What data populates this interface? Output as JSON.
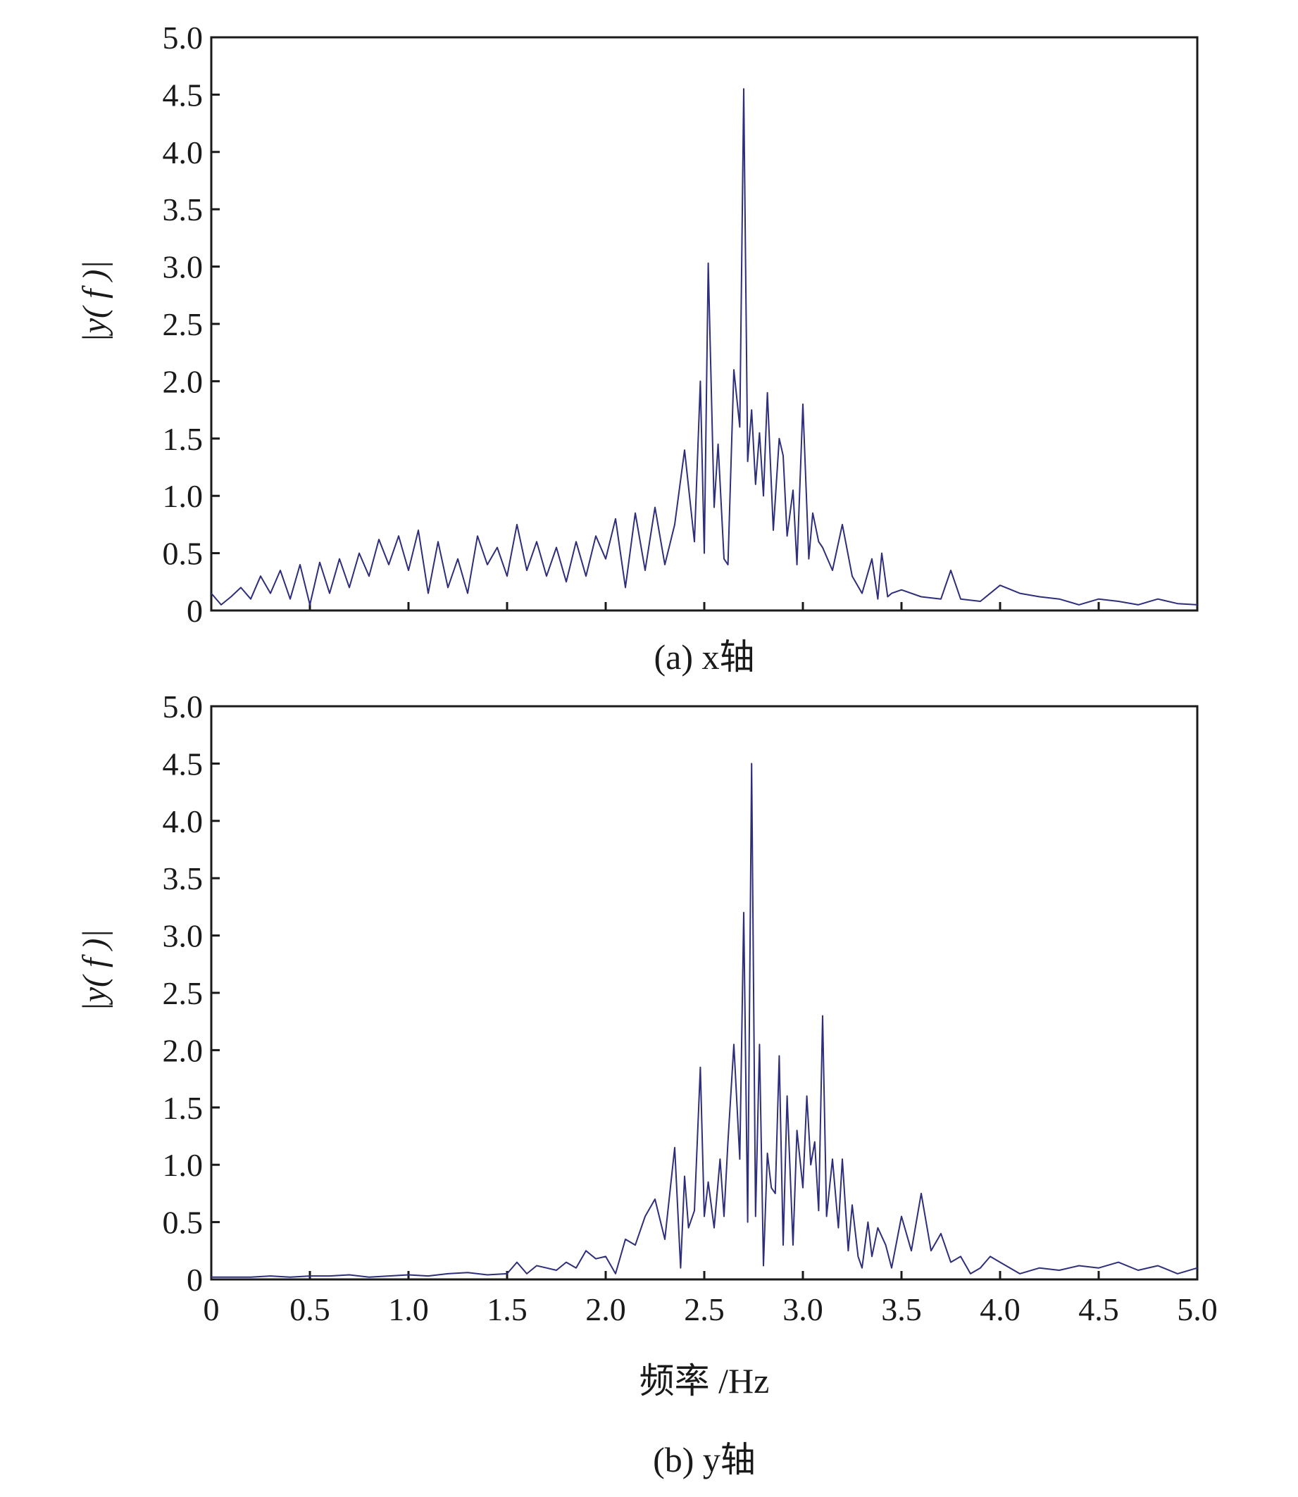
{
  "colors": {
    "line": "#2e2e7a",
    "axis": "#1a1a1a"
  },
  "chart_data": [
    {
      "type": "line",
      "caption": "(a) x轴",
      "ylabel": "|y( f )|",
      "xlabel": "",
      "xlim": [
        0,
        5.0
      ],
      "ylim": [
        0,
        5.0
      ],
      "xticks": [
        0,
        0.5,
        1.0,
        1.5,
        2.0,
        2.5,
        3.0,
        3.5,
        4.0,
        4.5,
        5.0
      ],
      "xtick_labels": [],
      "yticks": [
        0,
        0.5,
        1.0,
        1.5,
        2.0,
        2.5,
        3.0,
        3.5,
        4.0,
        4.5,
        5.0
      ],
      "ytick_labels": [
        "0",
        "0.5",
        "1.0",
        "1.5",
        "2.0",
        "2.5",
        "3.0",
        "3.5",
        "4.0",
        "4.5",
        "5.0"
      ],
      "grid": false,
      "series": [
        {
          "x": [
            0.0,
            0.05,
            0.1,
            0.15,
            0.2,
            0.25,
            0.3,
            0.35,
            0.4,
            0.45,
            0.5,
            0.55,
            0.6,
            0.65,
            0.7,
            0.75,
            0.8,
            0.85,
            0.9,
            0.95,
            1.0,
            1.05,
            1.1,
            1.15,
            1.2,
            1.25,
            1.3,
            1.35,
            1.4,
            1.45,
            1.5,
            1.55,
            1.6,
            1.65,
            1.7,
            1.75,
            1.8,
            1.85,
            1.9,
            1.95,
            2.0,
            2.05,
            2.1,
            2.15,
            2.2,
            2.25,
            2.3,
            2.35,
            2.4,
            2.45,
            2.48,
            2.5,
            2.52,
            2.55,
            2.57,
            2.6,
            2.62,
            2.65,
            2.68,
            2.7,
            2.72,
            2.74,
            2.76,
            2.78,
            2.8,
            2.82,
            2.85,
            2.88,
            2.9,
            2.92,
            2.95,
            2.97,
            3.0,
            3.03,
            3.05,
            3.08,
            3.1,
            3.15,
            3.2,
            3.25,
            3.3,
            3.35,
            3.38,
            3.4,
            3.43,
            3.45,
            3.5,
            3.6,
            3.7,
            3.75,
            3.8,
            3.9,
            4.0,
            4.1,
            4.2,
            4.3,
            4.4,
            4.5,
            4.6,
            4.7,
            4.8,
            4.9,
            5.0
          ],
          "y": [
            0.15,
            0.05,
            0.12,
            0.2,
            0.1,
            0.3,
            0.15,
            0.35,
            0.1,
            0.4,
            0.05,
            0.42,
            0.15,
            0.45,
            0.2,
            0.5,
            0.3,
            0.62,
            0.4,
            0.65,
            0.35,
            0.7,
            0.15,
            0.6,
            0.2,
            0.45,
            0.15,
            0.65,
            0.4,
            0.55,
            0.3,
            0.75,
            0.35,
            0.6,
            0.3,
            0.55,
            0.25,
            0.6,
            0.3,
            0.65,
            0.45,
            0.8,
            0.2,
            0.85,
            0.35,
            0.9,
            0.4,
            0.75,
            1.4,
            0.6,
            2.0,
            0.5,
            3.03,
            0.9,
            1.45,
            0.45,
            0.4,
            2.1,
            1.6,
            4.55,
            1.3,
            1.75,
            1.1,
            1.55,
            1.0,
            1.9,
            0.7,
            1.5,
            1.35,
            0.65,
            1.05,
            0.4,
            1.8,
            0.45,
            0.85,
            0.6,
            0.55,
            0.35,
            0.75,
            0.3,
            0.15,
            0.45,
            0.1,
            0.5,
            0.12,
            0.15,
            0.18,
            0.12,
            0.1,
            0.35,
            0.1,
            0.08,
            0.22,
            0.15,
            0.12,
            0.1,
            0.05,
            0.1,
            0.08,
            0.05,
            0.1,
            0.06,
            0.05
          ]
        }
      ]
    },
    {
      "type": "line",
      "caption": "(b) y轴",
      "ylabel": "|y( f )|",
      "xlabel": "频率 /Hz",
      "xlim": [
        0,
        5.0
      ],
      "ylim": [
        0,
        5.0
      ],
      "xticks": [
        0,
        0.5,
        1.0,
        1.5,
        2.0,
        2.5,
        3.0,
        3.5,
        4.0,
        4.5,
        5.0
      ],
      "xtick_labels": [
        "0",
        "0.5",
        "1.0",
        "1.5",
        "2.0",
        "2.5",
        "3.0",
        "3.5",
        "4.0",
        "4.5",
        "5.0"
      ],
      "yticks": [
        0,
        0.5,
        1.0,
        1.5,
        2.0,
        2.5,
        3.0,
        3.5,
        4.0,
        4.5,
        5.0
      ],
      "ytick_labels": [
        "0",
        "0.5",
        "1.0",
        "1.5",
        "2.0",
        "2.5",
        "3.0",
        "3.5",
        "4.0",
        "4.5",
        "5.0"
      ],
      "grid": false,
      "series": [
        {
          "x": [
            0.0,
            0.1,
            0.2,
            0.3,
            0.4,
            0.5,
            0.6,
            0.7,
            0.8,
            0.9,
            1.0,
            1.1,
            1.2,
            1.3,
            1.4,
            1.5,
            1.55,
            1.6,
            1.65,
            1.7,
            1.75,
            1.8,
            1.85,
            1.9,
            1.95,
            2.0,
            2.05,
            2.1,
            2.15,
            2.2,
            2.25,
            2.3,
            2.35,
            2.38,
            2.4,
            2.42,
            2.45,
            2.48,
            2.5,
            2.52,
            2.55,
            2.58,
            2.6,
            2.62,
            2.65,
            2.68,
            2.7,
            2.72,
            2.74,
            2.76,
            2.78,
            2.8,
            2.82,
            2.84,
            2.86,
            2.88,
            2.9,
            2.92,
            2.95,
            2.97,
            3.0,
            3.02,
            3.04,
            3.06,
            3.08,
            3.1,
            3.12,
            3.15,
            3.18,
            3.2,
            3.23,
            3.25,
            3.28,
            3.3,
            3.33,
            3.35,
            3.38,
            3.42,
            3.45,
            3.5,
            3.55,
            3.6,
            3.65,
            3.7,
            3.75,
            3.8,
            3.85,
            3.9,
            3.95,
            4.0,
            4.1,
            4.2,
            4.3,
            4.4,
            4.5,
            4.6,
            4.7,
            4.8,
            4.9,
            5.0
          ],
          "y": [
            0.02,
            0.02,
            0.02,
            0.03,
            0.02,
            0.03,
            0.03,
            0.04,
            0.02,
            0.03,
            0.04,
            0.03,
            0.05,
            0.06,
            0.04,
            0.05,
            0.15,
            0.05,
            0.12,
            0.1,
            0.08,
            0.15,
            0.1,
            0.25,
            0.18,
            0.2,
            0.05,
            0.35,
            0.3,
            0.55,
            0.7,
            0.35,
            1.15,
            0.1,
            0.9,
            0.45,
            0.6,
            1.85,
            0.55,
            0.85,
            0.45,
            1.05,
            0.55,
            1.2,
            2.05,
            1.05,
            3.2,
            0.5,
            4.5,
            0.55,
            2.05,
            0.12,
            1.1,
            0.8,
            0.75,
            1.95,
            0.3,
            1.6,
            0.3,
            1.3,
            0.8,
            1.6,
            1.0,
            1.2,
            0.6,
            2.3,
            0.55,
            1.05,
            0.45,
            1.05,
            0.25,
            0.65,
            0.2,
            0.1,
            0.5,
            0.2,
            0.45,
            0.3,
            0.1,
            0.55,
            0.25,
            0.75,
            0.25,
            0.4,
            0.15,
            0.2,
            0.05,
            0.1,
            0.2,
            0.15,
            0.05,
            0.1,
            0.08,
            0.12,
            0.1,
            0.15,
            0.08,
            0.12,
            0.05,
            0.1
          ]
        }
      ]
    }
  ]
}
